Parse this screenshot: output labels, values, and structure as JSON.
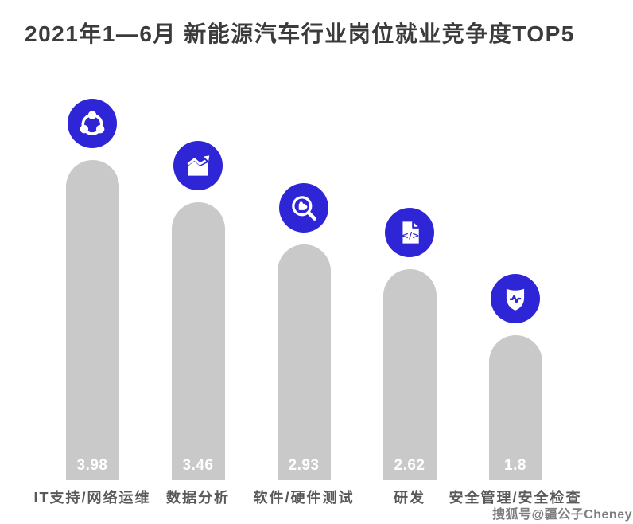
{
  "page": {
    "title": "2021年1—6月 新能源汽车行业岗位就业竞争度TOP5",
    "watermark": "搜狐号@疆公子Cheney"
  },
  "colors": {
    "accent": "#2E26D6",
    "bar_fill": "#C9C9C9",
    "title_text": "#3B3B3D",
    "label_text": "#58595B",
    "value_text": "#FFFFFF",
    "watermark_text": "#7E7E80",
    "background": "#FFFFFF"
  },
  "chart_data": {
    "type": "bar",
    "title": "2021年1—6月 新能源汽车行业岗位就业竞争度TOP5",
    "series_name": "岗位就业竞争度",
    "orientation": "vertical",
    "categories": [
      "IT支持/网络运维",
      "数据分析",
      "软件/硬件测试",
      "研发",
      "安全管理/安全检查"
    ],
    "values": [
      3.98,
      3.46,
      2.93,
      2.62,
      1.8
    ],
    "value_labels": [
      "3.98",
      "3.46",
      "2.93",
      "2.62",
      "1.8"
    ],
    "value_label_position": "inside-bottom",
    "ylim": [
      0,
      4.2
    ],
    "grid": false,
    "legend": false,
    "axes_visible": false,
    "icons": [
      "share-network-icon",
      "trend-chart-icon",
      "search-puzzle-icon",
      "code-document-icon",
      "shield-pulse-icon"
    ],
    "code_glyph": "</>"
  }
}
